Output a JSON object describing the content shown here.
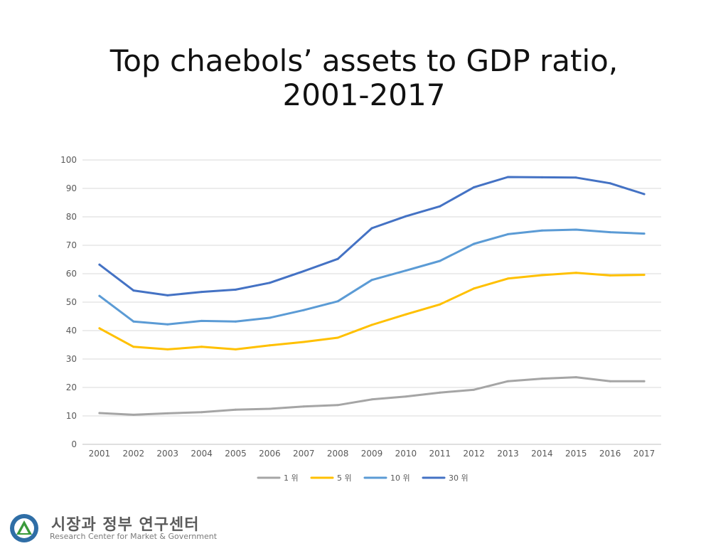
{
  "title_line1": "Top chaebols’ assets to GDP ratio,",
  "title_line2": "2001-2017",
  "chart_data": {
    "type": "line",
    "title": "Top chaebols’ assets to GDP ratio, 2001-2017",
    "xlabel": "",
    "ylabel": "",
    "ylim": [
      0,
      100
    ],
    "yticks": [
      0,
      10,
      20,
      30,
      40,
      50,
      60,
      70,
      80,
      90,
      100
    ],
    "grid": true,
    "legend_position": "bottom",
    "categories": [
      "2001",
      "2002",
      "2003",
      "2004",
      "2005",
      "2006",
      "2007",
      "2008",
      "2009",
      "2010",
      "2011",
      "2012",
      "2013",
      "2014",
      "2015",
      "2016",
      "2017"
    ],
    "series": [
      {
        "name": "1 위",
        "color": "#a5a5a5",
        "values": [
          11.0,
          10.4,
          10.9,
          11.3,
          12.2,
          12.5,
          13.3,
          13.8,
          15.8,
          16.8,
          18.2,
          19.2,
          22.2,
          23.1,
          23.6,
          22.2,
          22.2
        ]
      },
      {
        "name": "5 위",
        "color": "#ffc000",
        "values": [
          40.8,
          34.3,
          33.4,
          34.3,
          33.4,
          34.8,
          36.0,
          37.5,
          42.0,
          45.7,
          49.2,
          54.8,
          58.3,
          59.5,
          60.3,
          59.4,
          59.6
        ]
      },
      {
        "name": "10 위",
        "color": "#5b9bd5",
        "values": [
          52.2,
          43.2,
          42.2,
          43.4,
          43.2,
          44.5,
          47.2,
          50.3,
          57.8,
          61.1,
          64.5,
          70.5,
          73.9,
          75.2,
          75.5,
          74.6,
          74.1
        ]
      },
      {
        "name": "30 위",
        "color": "#4472c4",
        "values": [
          63.2,
          54.1,
          52.4,
          53.6,
          54.4,
          56.8,
          60.9,
          65.2,
          76.0,
          80.2,
          83.7,
          90.4,
          94.0,
          93.9,
          93.8,
          91.8,
          88.0
        ]
      }
    ]
  },
  "logo": {
    "korean_name": "시장과 정부 연구센터",
    "english_name": "Research Center for Market & Government"
  }
}
